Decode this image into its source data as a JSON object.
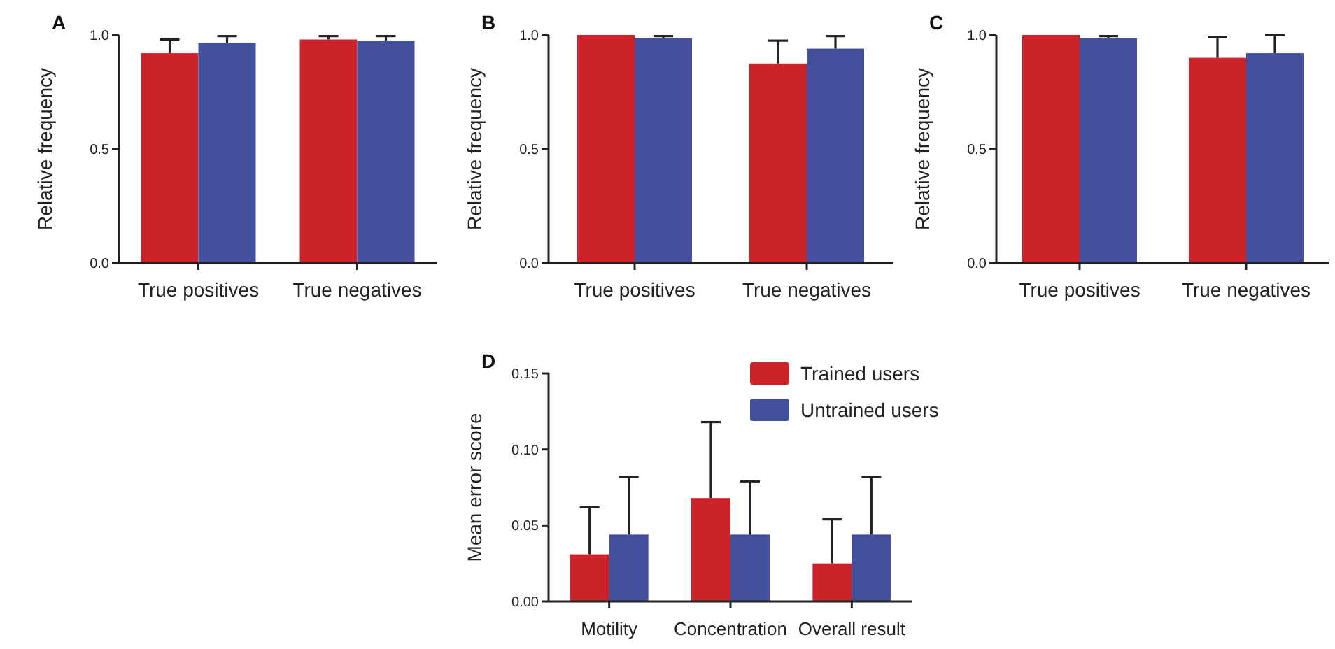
{
  "chart_data": [
    {
      "type": "bar",
      "title": "A",
      "ylabel": "Relative frequency",
      "categories": [
        "True positives",
        "True negatives"
      ],
      "ylim": [
        0,
        1
      ],
      "yticks": [
        {
          "value": 0,
          "label": "0.0"
        },
        0.5,
        {
          "value": 1,
          "label": "1.0"
        }
      ],
      "grid": false,
      "legend": false,
      "series": [
        {
          "color": "#cc2229",
          "values": [
            0.92,
            0.98
          ],
          "errors": [
            [
              0.92,
              0.98
            ],
            [
              0.98,
              0.995
            ]
          ]
        },
        {
          "color": "#43509e",
          "values": [
            0.965,
            0.975
          ],
          "errors": [
            [
              0.965,
              0.995
            ],
            [
              0.975,
              0.995
            ]
          ]
        }
      ]
    },
    {
      "type": "bar",
      "title": "B",
      "ylabel": "Relative frequency",
      "categories": [
        "True positives",
        "True negatives"
      ],
      "ylim": [
        0,
        1
      ],
      "yticks": [
        {
          "value": 0,
          "label": "0.0"
        },
        0.5,
        {
          "value": 1,
          "label": "1.0"
        }
      ],
      "grid": false,
      "legend": false,
      "series": [
        {
          "color": "#cc2229",
          "values": [
            1.0,
            0.875
          ],
          "errors": [
            null,
            [
              0.875,
              0.975
            ]
          ]
        },
        {
          "color": "#43509e",
          "values": [
            0.985,
            0.94
          ],
          "errors": [
            [
              0.985,
              0.995
            ],
            [
              0.94,
              0.995
            ]
          ]
        }
      ]
    },
    {
      "type": "bar",
      "title": "C",
      "ylabel": "Relative frequency",
      "categories": [
        "True positives",
        "True negatives"
      ],
      "ylim": [
        0,
        1
      ],
      "yticks": [
        {
          "value": 0,
          "label": "0.0"
        },
        0.5,
        {
          "value": 1,
          "label": "1.0"
        }
      ],
      "grid": false,
      "legend": false,
      "series": [
        {
          "color": "#cc2229",
          "values": [
            1.0,
            0.9
          ],
          "errors": [
            null,
            [
              0.9,
              0.99
            ]
          ]
        },
        {
          "color": "#43509e",
          "values": [
            0.985,
            0.92
          ],
          "errors": [
            [
              0.985,
              0.995
            ],
            [
              0.92,
              1.0
            ]
          ]
        }
      ]
    },
    {
      "type": "bar",
      "title": "D",
      "ylabel": "Mean error score",
      "categories": [
        "Motility",
        "Concentration",
        "Overall result"
      ],
      "ylim": [
        0,
        0.15
      ],
      "yticks": [
        {
          "value": 0,
          "label": "0.00"
        },
        0.05,
        {
          "value": 0.1,
          "label": "0.10"
        },
        0.15
      ],
      "grid": false,
      "legend": "top right",
      "series": [
        {
          "name": "Trained users",
          "color": "#cc2229",
          "values": [
            0.031,
            0.068,
            0.025
          ],
          "errors": [
            [
              0.031,
              0.062
            ],
            [
              0.068,
              0.118
            ],
            [
              0.025,
              0.054
            ]
          ]
        },
        {
          "name": "Untrained users",
          "color": "#43509e",
          "values": [
            0.044,
            0.044,
            0.044
          ],
          "errors": [
            [
              0.044,
              0.082
            ],
            [
              0.044,
              0.079
            ],
            [
              0.044,
              0.082
            ]
          ]
        }
      ]
    }
  ]
}
